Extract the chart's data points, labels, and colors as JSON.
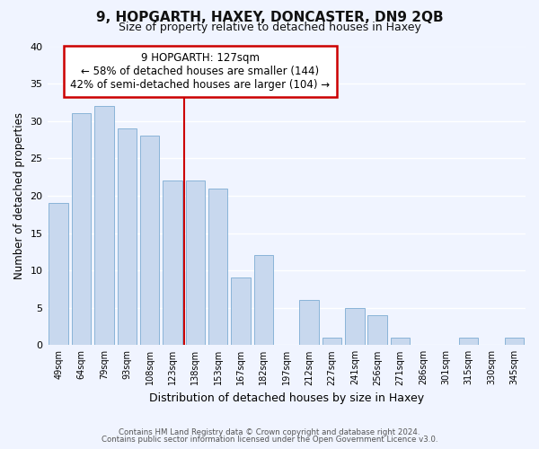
{
  "title": "9, HOPGARTH, HAXEY, DONCASTER, DN9 2QB",
  "subtitle": "Size of property relative to detached houses in Haxey",
  "xlabel": "Distribution of detached houses by size in Haxey",
  "ylabel": "Number of detached properties",
  "bar_labels": [
    "49sqm",
    "64sqm",
    "79sqm",
    "93sqm",
    "108sqm",
    "123sqm",
    "138sqm",
    "153sqm",
    "167sqm",
    "182sqm",
    "197sqm",
    "212sqm",
    "227sqm",
    "241sqm",
    "256sqm",
    "271sqm",
    "286sqm",
    "301sqm",
    "315sqm",
    "330sqm",
    "345sqm"
  ],
  "bar_values": [
    19,
    31,
    32,
    29,
    28,
    22,
    22,
    21,
    9,
    12,
    0,
    6,
    1,
    5,
    4,
    1,
    0,
    0,
    1,
    0,
    1
  ],
  "bar_color": "#c8d8ee",
  "bar_edge_color": "#8ab4d8",
  "annotation_text_line1": "9 HOPGARTH: 127sqm",
  "annotation_text_line2": "← 58% of detached houses are smaller (144)",
  "annotation_text_line3": "42% of semi-detached houses are larger (104) →",
  "annotation_box_facecolor": "#ffffff",
  "annotation_box_edgecolor": "#cc0000",
  "vline_color": "#cc0000",
  "vline_x_index": 5.5,
  "ylim": [
    0,
    40
  ],
  "yticks": [
    0,
    5,
    10,
    15,
    20,
    25,
    30,
    35,
    40
  ],
  "footer_line1": "Contains HM Land Registry data © Crown copyright and database right 2024.",
  "footer_line2": "Contains public sector information licensed under the Open Government Licence v3.0.",
  "bg_color": "#f0f4ff",
  "grid_color": "#ffffff",
  "title_fontsize": 11,
  "subtitle_fontsize": 9
}
